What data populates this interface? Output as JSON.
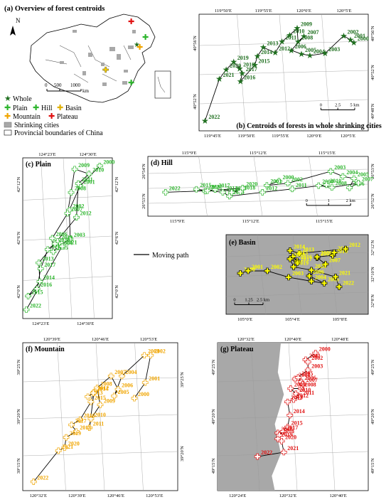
{
  "overview": {
    "title": "(a) Overview of forest centroids",
    "north": "N",
    "scale_ticks": [
      "0",
      "500",
      "1000"
    ],
    "scale_unit": "km",
    "legend": {
      "whole": "Whole",
      "plain": "Plain",
      "hill": "Hill",
      "basin": "Basin",
      "mountain": "Mountain",
      "plateau": "Plateau",
      "shrinking": "Shrinking cities",
      "boundaries": "Provincial boundaries of China"
    }
  },
  "moving_path_label": "Moving path",
  "colors": {
    "whole": "#1f6f1f",
    "plain": "#2db52d",
    "hill": "#2db52d",
    "basin": "#ffff00",
    "mountain": "#f0a500",
    "plateau": "#e01010",
    "gray_land": "#a8a8a8"
  },
  "panels": [
    {
      "key": "b",
      "title": "(b) Centroids of forests in whole shrinking cities",
      "symbol": "star",
      "color": "#1f6f1f",
      "bg": "#ffffff",
      "lon_labels_top": [
        "119°50′E",
        "119°55′E",
        "120°0′E",
        "120°5′E"
      ],
      "lon_labels_bottom": [
        "119°45′E",
        "119°50′E",
        "119°55′E",
        "120°0′E",
        "120°5′E"
      ],
      "lat_labels_right": [
        "40°56′N",
        "40°52′N",
        "40°48′N"
      ],
      "lat_labels_left": [
        "40°56′N",
        "40°52′N"
      ],
      "scale_ticks": [
        "0",
        "2.5",
        "5 km"
      ],
      "points": [
        {
          "year": "2000",
          "x": 0.915,
          "y": 0.245
        },
        {
          "year": "2001",
          "x": 0.895,
          "y": 0.22
        },
        {
          "year": "2002",
          "x": 0.855,
          "y": 0.185
        },
        {
          "year": "2003",
          "x": 0.745,
          "y": 0.335
        },
        {
          "year": "2004",
          "x": 0.655,
          "y": 0.355
        },
        {
          "year": "2005",
          "x": 0.605,
          "y": 0.34
        },
        {
          "year": "2006",
          "x": 0.545,
          "y": 0.31
        },
        {
          "year": "2007",
          "x": 0.62,
          "y": 0.19
        },
        {
          "year": "2008",
          "x": 0.585,
          "y": 0.235
        },
        {
          "year": "2009",
          "x": 0.58,
          "y": 0.12
        },
        {
          "year": "2010",
          "x": 0.535,
          "y": 0.18
        },
        {
          "year": "2011",
          "x": 0.49,
          "y": 0.235
        },
        {
          "year": "2012",
          "x": 0.45,
          "y": 0.33
        },
        {
          "year": "2013",
          "x": 0.38,
          "y": 0.285
        },
        {
          "year": "2014",
          "x": 0.345,
          "y": 0.36
        },
        {
          "year": "2015",
          "x": 0.33,
          "y": 0.435
        },
        {
          "year": "2016",
          "x": 0.245,
          "y": 0.575
        },
        {
          "year": "2017",
          "x": 0.255,
          "y": 0.505
        },
        {
          "year": "2018",
          "x": 0.24,
          "y": 0.465
        },
        {
          "year": "2019",
          "x": 0.205,
          "y": 0.41
        },
        {
          "year": "2020",
          "x": 0.16,
          "y": 0.475
        },
        {
          "year": "2021",
          "x": 0.12,
          "y": 0.555
        },
        {
          "year": "2022",
          "x": 0.035,
          "y": 0.915
        }
      ]
    },
    {
      "key": "c",
      "title": "(c) Plain",
      "symbol": "cross",
      "color": "#2db52d",
      "bg": "#ffffff",
      "lon_labels_top": [
        "124°23′E",
        "124°30′E"
      ],
      "lon_labels_bottom": [
        "124°23′E",
        "124°30′E"
      ],
      "lat_labels_right": [
        "42°12′N",
        "42°6′N",
        "42°0′N"
      ],
      "lat_labels_left": [
        "42°12′N",
        "42°6′N",
        "42°0′N"
      ],
      "scale_ticks": [],
      "points": [
        {
          "year": "2000",
          "x": 0.86,
          "y": 0.05
        },
        {
          "year": "2001",
          "x": 0.64,
          "y": 0.175
        },
        {
          "year": "2002",
          "x": 0.52,
          "y": 0.325
        },
        {
          "year": "2003",
          "x": 0.53,
          "y": 0.505
        },
        {
          "year": "2004",
          "x": 0.39,
          "y": 0.555
        },
        {
          "year": "2005",
          "x": 0.34,
          "y": 0.585
        },
        {
          "year": "2006",
          "x": 0.33,
          "y": 0.5
        },
        {
          "year": "2007",
          "x": 0.5,
          "y": 0.345
        },
        {
          "year": "2008",
          "x": 0.54,
          "y": 0.215
        },
        {
          "year": "2009",
          "x": 0.58,
          "y": 0.07
        },
        {
          "year": "2010",
          "x": 0.74,
          "y": 0.1
        },
        {
          "year": "2011",
          "x": 0.62,
          "y": 0.16
        },
        {
          "year": "2012",
          "x": 0.6,
          "y": 0.37
        },
        {
          "year": "2013",
          "x": 0.18,
          "y": 0.653
        },
        {
          "year": "2014",
          "x": 0.19,
          "y": 0.77
        },
        {
          "year": "2015",
          "x": 0.06,
          "y": 0.86
        },
        {
          "year": "2016",
          "x": 0.16,
          "y": 0.815
        },
        {
          "year": "2017",
          "x": 0.2,
          "y": 0.69
        },
        {
          "year": "2018",
          "x": 0.28,
          "y": 0.57
        },
        {
          "year": "2019",
          "x": 0.39,
          "y": 0.52
        },
        {
          "year": "2020",
          "x": 0.36,
          "y": 0.535
        },
        {
          "year": "2021",
          "x": 0.44,
          "y": 0.55
        },
        {
          "year": "2022",
          "x": 0.04,
          "y": 0.945
        }
      ]
    },
    {
      "key": "d",
      "title": "(d) Hill",
      "symbol": "cross",
      "color": "#2db52d",
      "bg": "#ffffff",
      "lon_labels_top": [
        "115°9′E",
        "115°12′E",
        "115°15′E"
      ],
      "lon_labels_bottom": [
        "115°9′E",
        "115°12′E",
        "115°15′E"
      ],
      "lat_labels_right": [
        "26°53′N",
        "26°52′N"
      ],
      "lat_labels_left": [
        "26°54′N",
        "26°53′N"
      ],
      "scale_ticks": [
        "0",
        "1",
        "2 km"
      ],
      "points": [
        {
          "year": "2000",
          "x": 0.595,
          "y": 0.415
        },
        {
          "year": "2001",
          "x": 0.54,
          "y": 0.485
        },
        {
          "year": "2002",
          "x": 0.635,
          "y": 0.45
        },
        {
          "year": "2003",
          "x": 0.83,
          "y": 0.25
        },
        {
          "year": "2004",
          "x": 0.885,
          "y": 0.335
        },
        {
          "year": "2005",
          "x": 0.935,
          "y": 0.37
        },
        {
          "year": "2006",
          "x": 0.915,
          "y": 0.525
        },
        {
          "year": "2007",
          "x": 0.955,
          "y": 0.445
        },
        {
          "year": "2008",
          "x": 0.835,
          "y": 0.52
        },
        {
          "year": "2009",
          "x": 0.775,
          "y": 0.49
        },
        {
          "year": "2010",
          "x": 0.81,
          "y": 0.475
        },
        {
          "year": "2011",
          "x": 0.655,
          "y": 0.545
        },
        {
          "year": "2012",
          "x": 0.52,
          "y": 0.6
        },
        {
          "year": "2013",
          "x": 0.37,
          "y": 0.665
        },
        {
          "year": "2014",
          "x": 0.34,
          "y": 0.6
        },
        {
          "year": "2015",
          "x": 0.22,
          "y": 0.55
        },
        {
          "year": "2016",
          "x": 0.26,
          "y": 0.58
        },
        {
          "year": "2017",
          "x": 0.305,
          "y": 0.555
        },
        {
          "year": "2018",
          "x": 0.42,
          "y": 0.59
        },
        {
          "year": "2019",
          "x": 0.38,
          "y": 0.6
        },
        {
          "year": "2020",
          "x": 0.43,
          "y": 0.53
        },
        {
          "year": "2021",
          "x": 0.27,
          "y": 0.575
        },
        {
          "year": "2022",
          "x": 0.08,
          "y": 0.6
        }
      ]
    },
    {
      "key": "e",
      "title": "(e) Basin",
      "symbol": "cross",
      "color": "#ffff00",
      "bg": "#a8a8a8",
      "lon_labels_top": [],
      "lon_labels_bottom": [
        "105°0′E",
        "105°4′E",
        "105°8′E"
      ],
      "lat_labels_right": [
        "32°12′N",
        "32°10′N",
        "32°8′N"
      ],
      "lat_labels_left": [],
      "scale_ticks": [
        "0",
        "1.25",
        "2.5 km"
      ],
      "points": [
        {
          "year": "2000",
          "x": 0.1,
          "y": 0.485
        },
        {
          "year": "2001",
          "x": 0.155,
          "y": 0.455
        },
        {
          "year": "2002",
          "x": 0.29,
          "y": 0.455
        },
        {
          "year": "2003",
          "x": 0.44,
          "y": 0.535
        },
        {
          "year": "2004",
          "x": 0.6,
          "y": 0.585
        },
        {
          "year": "2005",
          "x": 0.69,
          "y": 0.61
        },
        {
          "year": "2006",
          "x": 0.585,
          "y": 0.52
        },
        {
          "year": "2007",
          "x": 0.7,
          "y": 0.37
        },
        {
          "year": "2008",
          "x": 0.64,
          "y": 0.29
        },
        {
          "year": "2009",
          "x": 0.64,
          "y": 0.28
        },
        {
          "year": "2010",
          "x": 0.75,
          "y": 0.26
        },
        {
          "year": "2011",
          "x": 0.76,
          "y": 0.225
        },
        {
          "year": "2012",
          "x": 0.84,
          "y": 0.18
        },
        {
          "year": "2013",
          "x": 0.515,
          "y": 0.235
        },
        {
          "year": "2014",
          "x": 0.45,
          "y": 0.2
        },
        {
          "year": "2015",
          "x": 0.47,
          "y": 0.275
        },
        {
          "year": "2016",
          "x": 0.5,
          "y": 0.33
        },
        {
          "year": "2017",
          "x": 0.5,
          "y": 0.355
        },
        {
          "year": "2018",
          "x": 0.45,
          "y": 0.305
        },
        {
          "year": "2019",
          "x": 0.475,
          "y": 0.405
        },
        {
          "year": "2020",
          "x": 0.6,
          "y": 0.445
        },
        {
          "year": "2021",
          "x": 0.77,
          "y": 0.53
        },
        {
          "year": "2022",
          "x": 0.795,
          "y": 0.655
        }
      ]
    },
    {
      "key": "f",
      "title": "(f) Mountain",
      "symbol": "cross",
      "color": "#f0a500",
      "bg": "#ffffff",
      "lon_labels_top": [
        "120°39′E",
        "120°46′E",
        "120°53′E"
      ],
      "lon_labels_bottom": [
        "120°32′E",
        "120°39′E",
        "120°46′E",
        "120°53′E"
      ],
      "lat_labels_right": [
        "39°25′N",
        "39°20′N"
      ],
      "lat_labels_left": [
        "39°25′N",
        "39°20′N",
        "39°15′N"
      ],
      "scale_ticks": [],
      "points": [
        {
          "year": "2000",
          "x": 0.72,
          "y": 0.375
        },
        {
          "year": "2001",
          "x": 0.79,
          "y": 0.27
        },
        {
          "year": "2002",
          "x": 0.825,
          "y": 0.085
        },
        {
          "year": "2003",
          "x": 0.785,
          "y": 0.085
        },
        {
          "year": "2004",
          "x": 0.64,
          "y": 0.225
        },
        {
          "year": "2005",
          "x": 0.59,
          "y": 0.36
        },
        {
          "year": "2006",
          "x": 0.615,
          "y": 0.315
        },
        {
          "year": "2007",
          "x": 0.57,
          "y": 0.225
        },
        {
          "year": "2008",
          "x": 0.48,
          "y": 0.305
        },
        {
          "year": "2009",
          "x": 0.5,
          "y": 0.42
        },
        {
          "year": "2010",
          "x": 0.44,
          "y": 0.515
        },
        {
          "year": "2011",
          "x": 0.43,
          "y": 0.575
        },
        {
          "year": "2012",
          "x": 0.46,
          "y": 0.335
        },
        {
          "year": "2013",
          "x": 0.42,
          "y": 0.365
        },
        {
          "year": "2014",
          "x": 0.455,
          "y": 0.34
        },
        {
          "year": "2015",
          "x": 0.44,
          "y": 0.4
        },
        {
          "year": "2016",
          "x": 0.37,
          "y": 0.52
        },
        {
          "year": "2017",
          "x": 0.315,
          "y": 0.555
        },
        {
          "year": "2018",
          "x": 0.345,
          "y": 0.6
        },
        {
          "year": "2019",
          "x": 0.28,
          "y": 0.64
        },
        {
          "year": "2020",
          "x": 0.27,
          "y": 0.71
        },
        {
          "year": "2021",
          "x": 0.23,
          "y": 0.73
        },
        {
          "year": "2022",
          "x": 0.07,
          "y": 0.94
        }
      ]
    },
    {
      "key": "g",
      "title": "(g) Plateau",
      "symbol": "cross",
      "color": "#e01010",
      "bg": "#ffffff",
      "lon_labels_top": [
        "120°32′E",
        "120°40′E",
        "120°48′E"
      ],
      "lon_labels_bottom": [
        "120°24′E",
        "120°32′E",
        "120°40′E"
      ],
      "lat_labels_right": [
        "49°25′N",
        "49°20′N",
        "49°15′N"
      ],
      "lat_labels_left": [
        "49°25′N",
        "49°20′N",
        "49°15′N"
      ],
      "scale_ticks": [],
      "points": [
        {
          "year": "2000",
          "x": 0.65,
          "y": 0.07
        },
        {
          "year": "2001",
          "x": 0.585,
          "y": 0.115
        },
        {
          "year": "2002",
          "x": 0.6,
          "y": 0.13
        },
        {
          "year": "2003",
          "x": 0.6,
          "y": 0.185
        },
        {
          "year": "2004",
          "x": 0.515,
          "y": 0.245
        },
        {
          "year": "2005",
          "x": 0.535,
          "y": 0.235
        },
        {
          "year": "2006",
          "x": 0.555,
          "y": 0.265
        },
        {
          "year": "2007",
          "x": 0.565,
          "y": 0.28
        },
        {
          "year": "2008",
          "x": 0.555,
          "y": 0.31
        },
        {
          "year": "2009",
          "x": 0.485,
          "y": 0.31
        },
        {
          "year": "2010",
          "x": 0.52,
          "y": 0.345
        },
        {
          "year": "2011",
          "x": 0.545,
          "y": 0.365
        },
        {
          "year": "2012",
          "x": 0.505,
          "y": 0.385
        },
        {
          "year": "2013",
          "x": 0.465,
          "y": 0.4
        },
        {
          "year": "2014",
          "x": 0.48,
          "y": 0.49
        },
        {
          "year": "2015",
          "x": 0.465,
          "y": 0.57
        },
        {
          "year": "2016",
          "x": 0.4,
          "y": 0.61
        },
        {
          "year": "2017",
          "x": 0.435,
          "y": 0.6
        },
        {
          "year": "2018",
          "x": 0.41,
          "y": 0.625
        },
        {
          "year": "2019",
          "x": 0.4,
          "y": 0.65
        },
        {
          "year": "2020",
          "x": 0.425,
          "y": 0.665
        },
        {
          "year": "2021",
          "x": 0.44,
          "y": 0.74
        },
        {
          "year": "2022",
          "x": 0.265,
          "y": 0.77
        }
      ]
    }
  ]
}
